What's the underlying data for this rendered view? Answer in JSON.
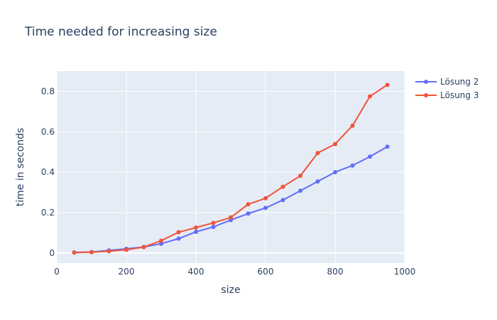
{
  "chart_data": {
    "type": "line",
    "title": "Time needed for increasing size",
    "xlabel": "size",
    "ylabel": "time in seconds",
    "xlim": [
      0,
      1000
    ],
    "ylim": [
      -0.05,
      0.9
    ],
    "xticks": [
      0,
      200,
      400,
      600,
      800,
      1000
    ],
    "yticks": [
      0,
      0.2,
      0.4,
      0.6,
      0.8
    ],
    "grid": true,
    "legend": "top-right",
    "x": [
      50,
      100,
      150,
      200,
      250,
      300,
      350,
      400,
      450,
      500,
      550,
      600,
      650,
      700,
      750,
      800,
      850,
      900,
      950
    ],
    "series": [
      {
        "name": "Lösung 2",
        "color": "#636efa",
        "values": [
          0.003,
          0.005,
          0.013,
          0.021,
          0.03,
          0.046,
          0.071,
          0.105,
          0.129,
          0.163,
          0.195,
          0.223,
          0.262,
          0.308,
          0.354,
          0.4,
          0.433,
          0.477,
          0.526
        ]
      },
      {
        "name": "Lösung 3",
        "color": "#ef553b",
        "values": [
          0.002,
          0.004,
          0.009,
          0.016,
          0.029,
          0.061,
          0.103,
          0.126,
          0.149,
          0.176,
          0.241,
          0.271,
          0.328,
          0.382,
          0.495,
          0.539,
          0.63,
          0.775,
          0.832
        ]
      }
    ]
  }
}
